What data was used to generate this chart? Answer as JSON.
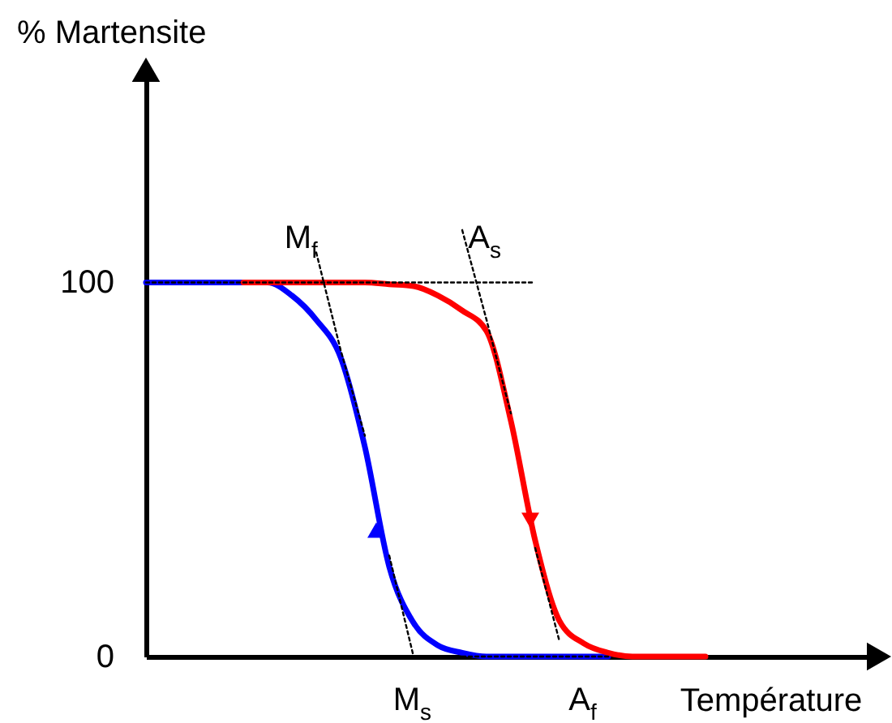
{
  "chart_data": {
    "type": "line",
    "ylabel": "% Martensite",
    "xlabel": "Température",
    "categories": [
      null,
      null,
      null,
      null,
      null,
      null,
      null,
      null,
      null,
      null,
      null,
      null,
      null,
      null,
      null,
      null,
      null,
      null,
      null,
      null,
      null,
      null,
      null,
      null,
      null,
      null,
      null,
      null,
      null,
      null,
      null
    ],
    "series": [
      {
        "type": "line",
        "color": "#0000ff",
        "line_style": "solid",
        "values": [
          100,
          100,
          100,
          100,
          100,
          100,
          96.5,
          90,
          80,
          56,
          24,
          9,
          3,
          1,
          0,
          0,
          0,
          0,
          0,
          0,
          null,
          null,
          null,
          null,
          null,
          null,
          null,
          null,
          null,
          null,
          null
        ]
      },
      {
        "type": "line",
        "color": "#ff0000",
        "line_style": "solid",
        "values": [
          null,
          null,
          null,
          null,
          100,
          100,
          100,
          100,
          100,
          100,
          99.5,
          99,
          96.5,
          92.5,
          87,
          63,
          31,
          9.5,
          3.5,
          1,
          0,
          0,
          0,
          0,
          null,
          null,
          null,
          null,
          null,
          null,
          null
        ]
      },
      {
        "type": "line",
        "color": "#000000",
        "line_style": "dotted",
        "values": [
          100,
          100,
          100,
          100,
          100,
          100,
          100,
          100,
          100,
          100,
          100,
          100,
          100,
          100,
          100,
          100,
          100,
          null,
          null,
          null,
          null,
          null,
          null,
          null,
          null,
          null,
          null,
          null,
          null,
          null,
          null
        ]
      },
      {
        "type": "line",
        "color": "#000000",
        "line_style": "dotted",
        "values": [
          null,
          null,
          null,
          null,
          null,
          null,
          null,
          null,
          null,
          0,
          0,
          0,
          0,
          0,
          0,
          0,
          0,
          0,
          0,
          0,
          null,
          null,
          null,
          null,
          null,
          null,
          null,
          null,
          null,
          null,
          null
        ]
      },
      {
        "type": "line",
        "color": "#000000",
        "line_style": "dotted",
        "values": [
          null,
          null,
          null,
          null,
          null,
          null,
          null,
          108,
          82,
          59,
          null,
          null,
          null,
          null,
          null,
          null,
          null,
          null,
          null,
          null,
          null,
          null,
          null,
          null,
          null,
          null,
          null,
          null,
          null,
          null,
          null
        ]
      },
      {
        "type": "line",
        "color": "#000000",
        "line_style": "dotted",
        "values": [
          null,
          null,
          null,
          null,
          null,
          null,
          null,
          null,
          null,
          null,
          null,
          null,
          null,
          114,
          90,
          65,
          null,
          null,
          null,
          null,
          null,
          null,
          null,
          null,
          null,
          null,
          null,
          null,
          null,
          null,
          null
        ]
      },
      {
        "type": "line",
        "color": "#000000",
        "line_style": "dotted",
        "values": [
          null,
          null,
          null,
          null,
          null,
          null,
          null,
          null,
          null,
          null,
          27,
          0,
          null,
          null,
          null,
          null,
          null,
          null,
          null,
          null,
          null,
          null,
          null,
          null,
          null,
          null,
          null,
          null,
          null,
          null,
          null
        ]
      },
      {
        "type": "line",
        "color": "#000000",
        "line_style": "dotted",
        "values": [
          null,
          null,
          null,
          null,
          null,
          null,
          null,
          null,
          null,
          null,
          null,
          null,
          null,
          null,
          null,
          null,
          29,
          4,
          null,
          null,
          null,
          null,
          null,
          null,
          null,
          null,
          null,
          null,
          null,
          null,
          null
        ]
      }
    ],
    "annotations": [
      "M$_{f}$",
      "A$_{s}$",
      "M$_{s}$",
      "A$_{f}$"
    ],
    "ylim": [
      0,
      156
    ],
    "yticks": [
      0,
      100
    ],
    "grid": false,
    "tick_labels": "y"
  }
}
